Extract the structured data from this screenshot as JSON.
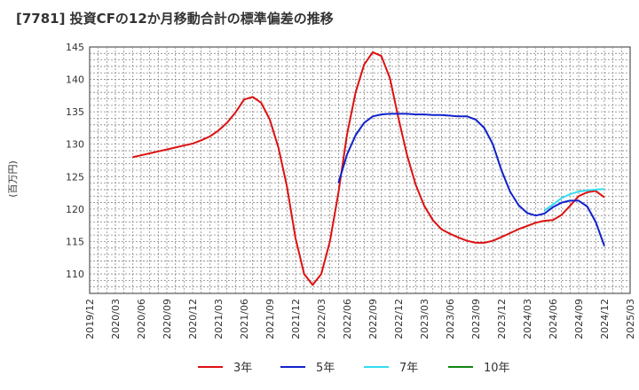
{
  "chart_data": {
    "type": "line",
    "title": "[7781]  投資CFの12か月移動合計の標準偏差の推移",
    "ylabel": "(百万円)",
    "xlabel": "",
    "ylim": [
      107,
      145
    ],
    "yticks": [
      110,
      115,
      120,
      125,
      130,
      135,
      140,
      145
    ],
    "x_range": [
      "2019-12",
      "2025-03"
    ],
    "x_tick_labels": [
      "2019/12",
      "2020/03",
      "2020/06",
      "2020/09",
      "2020/12",
      "2021/03",
      "2021/06",
      "2021/09",
      "2021/12",
      "2022/03",
      "2022/06",
      "2022/09",
      "2022/12",
      "2023/03",
      "2023/06",
      "2023/09",
      "2023/12",
      "2024/03",
      "2024/06",
      "2024/09",
      "2024/12",
      "2025/03"
    ],
    "grid": true,
    "legend_position": "bottom",
    "series": [
      {
        "name": "3年",
        "color": "#dd1111",
        "points": [
          [
            "2020-05",
            128.0
          ],
          [
            "2020-06",
            128.3
          ],
          [
            "2020-07",
            128.6
          ],
          [
            "2020-08",
            128.9
          ],
          [
            "2020-09",
            129.2
          ],
          [
            "2020-10",
            129.5
          ],
          [
            "2020-11",
            129.8
          ],
          [
            "2020-12",
            130.1
          ],
          [
            "2021-01",
            130.6
          ],
          [
            "2021-02",
            131.2
          ],
          [
            "2021-03",
            132.1
          ],
          [
            "2021-04",
            133.3
          ],
          [
            "2021-05",
            134.9
          ],
          [
            "2021-06",
            136.9
          ],
          [
            "2021-07",
            137.3
          ],
          [
            "2021-08",
            136.4
          ],
          [
            "2021-09",
            133.8
          ],
          [
            "2021-10",
            129.5
          ],
          [
            "2021-11",
            123.5
          ],
          [
            "2021-12",
            115.5
          ],
          [
            "2022-01",
            110.0
          ],
          [
            "2022-02",
            108.3
          ],
          [
            "2022-03",
            110.0
          ],
          [
            "2022-04",
            115.0
          ],
          [
            "2022-05",
            122.5
          ],
          [
            "2022-06",
            131.5
          ],
          [
            "2022-07",
            138.0
          ],
          [
            "2022-08",
            142.3
          ],
          [
            "2022-09",
            144.2
          ],
          [
            "2022-10",
            143.6
          ],
          [
            "2022-11",
            140.2
          ],
          [
            "2022-12",
            134.0
          ],
          [
            "2023-01",
            128.3
          ],
          [
            "2023-02",
            123.8
          ],
          [
            "2023-03",
            120.5
          ],
          [
            "2023-04",
            118.3
          ],
          [
            "2023-05",
            116.9
          ],
          [
            "2023-06",
            116.2
          ],
          [
            "2023-07",
            115.6
          ],
          [
            "2023-08",
            115.1
          ],
          [
            "2023-09",
            114.8
          ],
          [
            "2023-10",
            114.8
          ],
          [
            "2023-11",
            115.1
          ],
          [
            "2023-12",
            115.7
          ],
          [
            "2023-13",
            116.3
          ],
          [
            "2024-02",
            116.9
          ],
          [
            "2024-03",
            117.4
          ],
          [
            "2024-04",
            117.9
          ],
          [
            "2024-05",
            118.2
          ],
          [
            "2024-06",
            118.3
          ],
          [
            "2024-07",
            119.1
          ],
          [
            "2024-08",
            120.5
          ],
          [
            "2024-09",
            122.0
          ],
          [
            "2024-10",
            122.6
          ],
          [
            "2024-11",
            122.8
          ],
          [
            "2024-12",
            121.8
          ]
        ]
      },
      {
        "name": "5年",
        "color": "#1122cc",
        "points": [
          [
            "2022-05",
            124.0
          ],
          [
            "2022-06",
            128.4
          ],
          [
            "2022-07",
            131.4
          ],
          [
            "2022-08",
            133.3
          ],
          [
            "2022-09",
            134.3
          ],
          [
            "2022-10",
            134.6
          ],
          [
            "2022-11",
            134.7
          ],
          [
            "2022-12",
            134.7
          ],
          [
            "2023-01",
            134.7
          ],
          [
            "2023-02",
            134.6
          ],
          [
            "2023-03",
            134.6
          ],
          [
            "2023-04",
            134.5
          ],
          [
            "2023-05",
            134.5
          ],
          [
            "2023-06",
            134.4
          ],
          [
            "2023-07",
            134.3
          ],
          [
            "2023-08",
            134.3
          ],
          [
            "2023-09",
            133.8
          ],
          [
            "2023-10",
            132.5
          ],
          [
            "2023-11",
            130.0
          ],
          [
            "2023-12",
            126.0
          ],
          [
            "2024-01",
            122.7
          ],
          [
            "2024-02",
            120.6
          ],
          [
            "2024-03",
            119.4
          ],
          [
            "2024-04",
            119.0
          ],
          [
            "2024-05",
            119.3
          ],
          [
            "2024-06",
            120.3
          ],
          [
            "2024-07",
            121.0
          ],
          [
            "2024-08",
            121.3
          ],
          [
            "2024-09",
            121.3
          ],
          [
            "2024-10",
            120.4
          ],
          [
            "2024-11",
            118.0
          ],
          [
            "2024-12",
            114.3
          ]
        ]
      },
      {
        "name": "7年",
        "color": "#33ddee",
        "points": [
          [
            "2024-05",
            119.8
          ],
          [
            "2024-06",
            120.7
          ],
          [
            "2024-07",
            121.7
          ],
          [
            "2024-08",
            122.3
          ],
          [
            "2024-09",
            122.7
          ],
          [
            "2024-10",
            122.9
          ],
          [
            "2024-11",
            123.0
          ],
          [
            "2024-12",
            123.1
          ]
        ]
      },
      {
        "name": "10年",
        "color": "#118811",
        "points": []
      }
    ]
  }
}
